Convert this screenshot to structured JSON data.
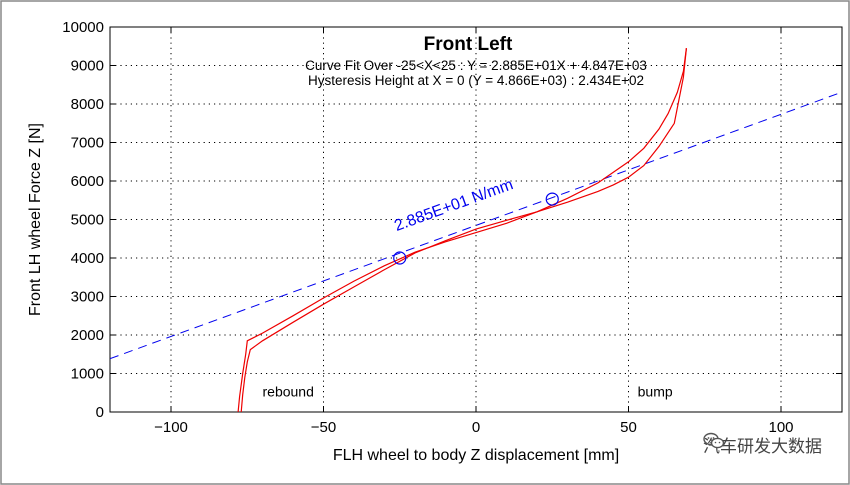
{
  "chart_data": {
    "type": "line",
    "title": "Front Left",
    "subtitle_lines": [
      "Curve Fit Over -25<X<25 : Y = 2.885E+01X + 4.847E+03",
      "Hysteresis Height at X = 0 (Y = 4.866E+03) : 2.434E+02"
    ],
    "xlabel": "FLH wheel to body Z displacement [mm]",
    "ylabel": "Front LH wheel Force Z [N]",
    "xlim": [
      -120,
      120
    ],
    "ylim": [
      0,
      10000
    ],
    "x_ticks": [
      -100,
      -50,
      0,
      50,
      100
    ],
    "x_tick_labels": [
      "−100",
      "−50",
      "0",
      "50",
      "100"
    ],
    "y_ticks": [
      0,
      1000,
      2000,
      3000,
      4000,
      5000,
      6000,
      7000,
      8000,
      9000,
      10000
    ],
    "y_tick_labels": [
      "0",
      "1000",
      "2000",
      "3000",
      "4000",
      "5000",
      "6000",
      "7000",
      "8000",
      "9000",
      "10000"
    ],
    "grid": true,
    "fit_line": {
      "slope": 28.85,
      "intercept": 4847,
      "label": "2.885E+01 N/mm",
      "color": "#0000ee"
    },
    "markers": [
      {
        "x": -25,
        "y": 4000
      },
      {
        "x": 25,
        "y": 5530
      }
    ],
    "series": [
      {
        "color": "#ee0000",
        "x": [
          -78,
          -77.5,
          -76.5,
          -75.5,
          -75,
          -70,
          -60,
          -50,
          -40,
          -30,
          -20,
          -10,
          0,
          10,
          20,
          30,
          40,
          50,
          55,
          60,
          63,
          66,
          68,
          69
        ],
        "y": [
          0,
          400,
          1000,
          1500,
          1850,
          2050,
          2500,
          2960,
          3400,
          3800,
          4150,
          4420,
          4660,
          4900,
          5200,
          5550,
          5950,
          6500,
          6850,
          7350,
          7750,
          8300,
          8850,
          9450
        ]
      },
      {
        "color": "#ee0000",
        "x": [
          69,
          68,
          65,
          60,
          55,
          50,
          45,
          40,
          30,
          20,
          10,
          0,
          -10,
          -20,
          -30,
          -40,
          -50,
          -60,
          -70,
          -74,
          -75,
          -75.8,
          -76.5,
          -77
        ],
        "y": [
          9450,
          8700,
          7500,
          6900,
          6400,
          6100,
          5900,
          5730,
          5450,
          5200,
          4980,
          4750,
          4450,
          4130,
          3700,
          3250,
          2800,
          2330,
          1850,
          1620,
          1300,
          900,
          450,
          0
        ]
      }
    ],
    "annotations": [
      {
        "text": "rebound",
        "x": -70,
        "y": 400
      },
      {
        "text": "bump",
        "x": 53,
        "y": 400
      }
    ]
  },
  "watermark": {
    "text": "汽车研发大数据"
  }
}
